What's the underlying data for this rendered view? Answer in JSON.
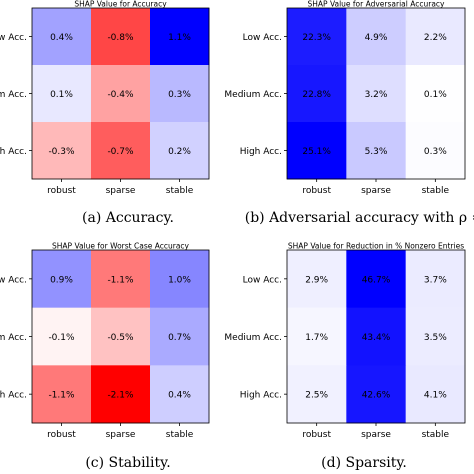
{
  "chart_data": [
    {
      "type": "heatmap",
      "title": "SHAP Value for Accuracy",
      "caption": "(a) Accuracy.",
      "rows": [
        "w Acc.",
        "m Acc.",
        "h Acc."
      ],
      "cols": [
        "robust",
        "sparse",
        "stable"
      ],
      "values": [
        [
          0.4,
          -0.8,
          1.1
        ],
        [
          0.1,
          -0.4,
          0.3
        ],
        [
          -0.3,
          -0.7,
          0.2
        ]
      ],
      "labels": [
        [
          "0.4%",
          "-0.8%",
          "1.1%"
        ],
        [
          "0.1%",
          "-0.4%",
          "0.3%"
        ],
        [
          "-0.3%",
          "-0.7%",
          "0.2%"
        ]
      ],
      "colormap": "bwr_r",
      "vmax": 1.1
    },
    {
      "type": "heatmap",
      "title": "SHAP Value for Adversarial Accuracy",
      "caption": "(b) Adversarial accuracy with ρ =",
      "rows": [
        "Low Acc.",
        "Medium Acc.",
        "High Acc."
      ],
      "cols": [
        "robust",
        "sparse",
        "stable"
      ],
      "values": [
        [
          22.3,
          4.9,
          2.2
        ],
        [
          22.8,
          3.2,
          0.1
        ],
        [
          25.1,
          5.3,
          0.3
        ]
      ],
      "labels": [
        [
          "22.3%",
          "4.9%",
          "2.2%"
        ],
        [
          "22.8%",
          "3.2%",
          "0.1%"
        ],
        [
          "25.1%",
          "5.3%",
          "0.3%"
        ]
      ],
      "colormap": "bwr_r",
      "vmax": 25.1
    },
    {
      "type": "heatmap",
      "title": "SHAP Value for Worst Case Accuracy",
      "caption": "(c) Stability.",
      "rows": [
        "w Acc.",
        "m Acc.",
        "h Acc."
      ],
      "cols": [
        "robust",
        "sparse",
        "stable"
      ],
      "values": [
        [
          0.9,
          -1.1,
          1.0
        ],
        [
          -0.1,
          -0.5,
          0.7
        ],
        [
          -1.1,
          -2.1,
          0.4
        ]
      ],
      "labels": [
        [
          "0.9%",
          "-1.1%",
          "1.0%"
        ],
        [
          "-0.1%",
          "-0.5%",
          "0.7%"
        ],
        [
          "-1.1%",
          "-2.1%",
          "0.4%"
        ]
      ],
      "colormap": "bwr_r",
      "vmax": 2.1
    },
    {
      "type": "heatmap",
      "title": "SHAP Value for Reduction in % Nonzero Entries",
      "caption": "(d) Sparsity.",
      "rows": [
        "Low Acc.",
        "Medium Acc.",
        "High Acc."
      ],
      "cols": [
        "robust",
        "sparse",
        "stable"
      ],
      "values": [
        [
          2.9,
          46.7,
          3.7
        ],
        [
          1.7,
          43.4,
          3.5
        ],
        [
          2.5,
          42.6,
          4.1
        ]
      ],
      "labels": [
        [
          "2.9%",
          "46.7%",
          "3.7%"
        ],
        [
          "1.7%",
          "43.4%",
          "3.5%"
        ],
        [
          "2.5%",
          "42.6%",
          "4.1%"
        ]
      ],
      "colormap": "bwr_r",
      "vmax": 46.7
    }
  ]
}
